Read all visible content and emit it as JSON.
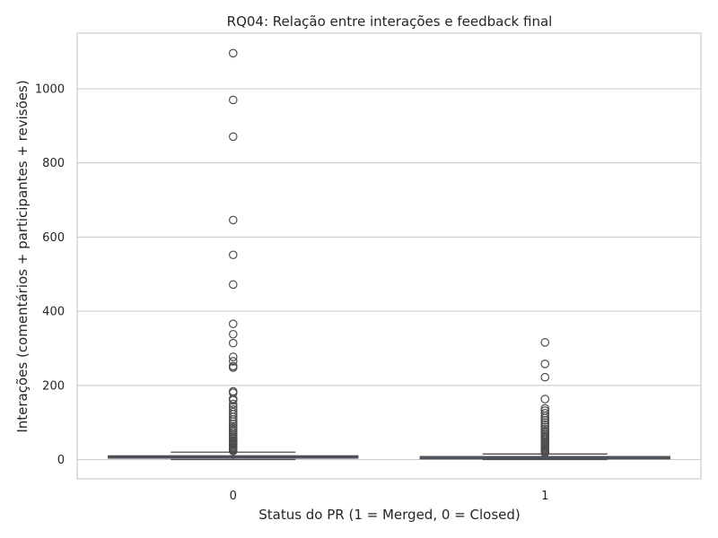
{
  "chart_data": {
    "type": "box",
    "title": "RQ04: Relação entre interações e feedback final",
    "xlabel": "Status do PR (1 = Merged, 0 = Closed)",
    "ylabel": "Interações (comentários + participantes + revisões)",
    "categories": [
      "0",
      "1"
    ],
    "ylim": [
      -52,
      1150
    ],
    "yticks": [
      0,
      200,
      400,
      600,
      800,
      1000
    ],
    "grid": true,
    "boxes": [
      {
        "category": "0",
        "whisker_low": 0,
        "q1": 6,
        "median": 8,
        "q3": 10,
        "whisker_high": 20,
        "outliers": [
          1096,
          970,
          871,
          646,
          552,
          472,
          366,
          338,
          314,
          277,
          265,
          252,
          248,
          184,
          180,
          164,
          160,
          150,
          142,
          135,
          128,
          122,
          115,
          108,
          102,
          96,
          90,
          85,
          80,
          75,
          70,
          66,
          62,
          58,
          54,
          50,
          47,
          44,
          41,
          38,
          35,
          32,
          29,
          26,
          23
        ]
      },
      {
        "category": "1",
        "whisker_low": 0,
        "q1": 4,
        "median": 6,
        "q3": 8,
        "whisker_high": 15,
        "outliers": [
          316,
          258,
          222,
          163,
          138,
          132,
          125,
          118,
          112,
          106,
          100,
          94,
          88,
          82,
          77,
          72,
          68,
          64,
          60,
          56,
          52,
          48,
          45,
          42,
          39,
          36,
          33,
          30,
          27,
          24,
          21,
          18
        ]
      }
    ]
  }
}
